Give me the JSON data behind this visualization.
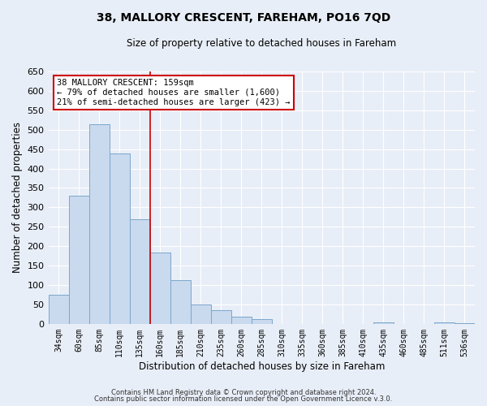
{
  "title": "38, MALLORY CRESCENT, FAREHAM, PO16 7QD",
  "subtitle": "Size of property relative to detached houses in Fareham",
  "xlabel": "Distribution of detached houses by size in Fareham",
  "ylabel": "Number of detached properties",
  "bar_color": "#c9d9ee",
  "bar_edge_color": "#7ba7cc",
  "background_color": "#e8eef7",
  "grid_color": "#ffffff",
  "bins": [
    "34sqm",
    "60sqm",
    "85sqm",
    "110sqm",
    "135sqm",
    "160sqm",
    "185sqm",
    "210sqm",
    "235sqm",
    "260sqm",
    "285sqm",
    "310sqm",
    "335sqm",
    "360sqm",
    "385sqm",
    "410sqm",
    "435sqm",
    "460sqm",
    "485sqm",
    "511sqm",
    "536sqm"
  ],
  "values": [
    75,
    330,
    515,
    438,
    270,
    183,
    112,
    50,
    35,
    18,
    12,
    0,
    0,
    0,
    0,
    0,
    3,
    0,
    0,
    4,
    2
  ],
  "ylim": [
    0,
    650
  ],
  "yticks": [
    0,
    50,
    100,
    150,
    200,
    250,
    300,
    350,
    400,
    450,
    500,
    550,
    600,
    650
  ],
  "annotation_line1": "38 MALLORY CRESCENT: 159sqm",
  "annotation_line2": "← 79% of detached houses are smaller (1,600)",
  "annotation_line3": "21% of semi-detached houses are larger (423) →",
  "annotation_box_color": "#ffffff",
  "annotation_box_edge": "#cc0000",
  "vline_color": "#cc0000",
  "vline_x_index": 5,
  "footnote1": "Contains HM Land Registry data © Crown copyright and database right 2024.",
  "footnote2": "Contains public sector information licensed under the Open Government Licence v.3.0."
}
